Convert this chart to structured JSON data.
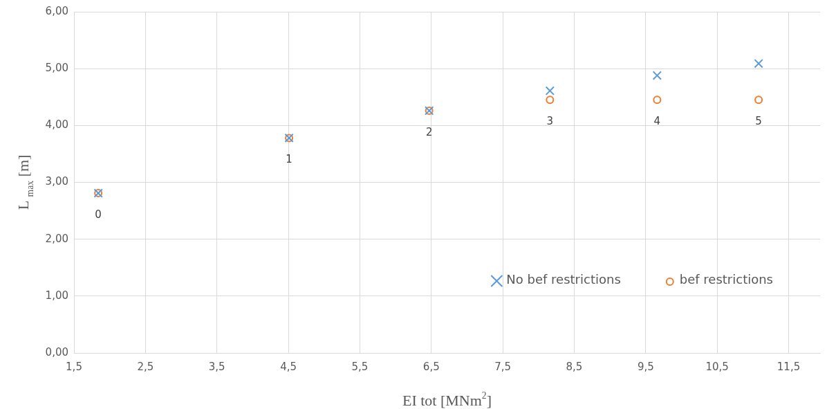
{
  "chart_data": {
    "type": "scatter",
    "xlabel": "EI tot [MNm$^{2}$]",
    "ylabel": "L $_{max}$ [m]",
    "xlim": [
      1.5,
      11.94
    ],
    "ylim": [
      0,
      6
    ],
    "xticks": [
      {
        "value": 1.5,
        "label": "1,5"
      },
      {
        "value": 2.5,
        "label": "2,5"
      },
      {
        "value": 3.5,
        "label": "3,5"
      },
      {
        "value": 4.5,
        "label": "4,5"
      },
      {
        "value": 5.5,
        "label": "5,5"
      },
      {
        "value": 6.5,
        "label": "6,5"
      },
      {
        "value": 7.5,
        "label": "7,5"
      },
      {
        "value": 8.5,
        "label": "8,5"
      },
      {
        "value": 9.5,
        "label": "9,5"
      },
      {
        "value": 10.5,
        "label": "10,5"
      },
      {
        "value": 11.5,
        "label": "11,5"
      }
    ],
    "yticks": [
      {
        "value": 0,
        "label": "0,00"
      },
      {
        "value": 1,
        "label": "1,00"
      },
      {
        "value": 2,
        "label": "2,00"
      },
      {
        "value": 3,
        "label": "3,00"
      },
      {
        "value": 4,
        "label": "4,00"
      },
      {
        "value": 5,
        "label": "5,00"
      },
      {
        "value": 6,
        "label": "6,00"
      }
    ],
    "x": [
      1.84,
      4.51,
      6.47,
      8.16,
      9.66,
      11.08
    ],
    "series": [
      {
        "name": "No bef restrictions",
        "color": "#5b9bd5",
        "marker": "cross",
        "values": [
          2.81,
          3.78,
          4.26,
          4.61,
          4.88,
          5.09
        ]
      },
      {
        "name": "bef restrictions",
        "color": "#ed7d31",
        "marker": "circle",
        "values": [
          2.81,
          3.78,
          4.26,
          4.45,
          4.45,
          4.45
        ]
      }
    ],
    "annotations": [
      {
        "text": "0",
        "x": 1.84,
        "y": 2.81
      },
      {
        "text": "1",
        "x": 4.51,
        "y": 3.78
      },
      {
        "text": "2",
        "x": 6.47,
        "y": 4.26
      },
      {
        "text": "3",
        "x": 8.16,
        "y": 4.45
      },
      {
        "text": "4",
        "x": 9.66,
        "y": 4.45
      },
      {
        "text": "5",
        "x": 11.08,
        "y": 4.45
      }
    ],
    "grid": true,
    "legend": "bottom right"
  }
}
